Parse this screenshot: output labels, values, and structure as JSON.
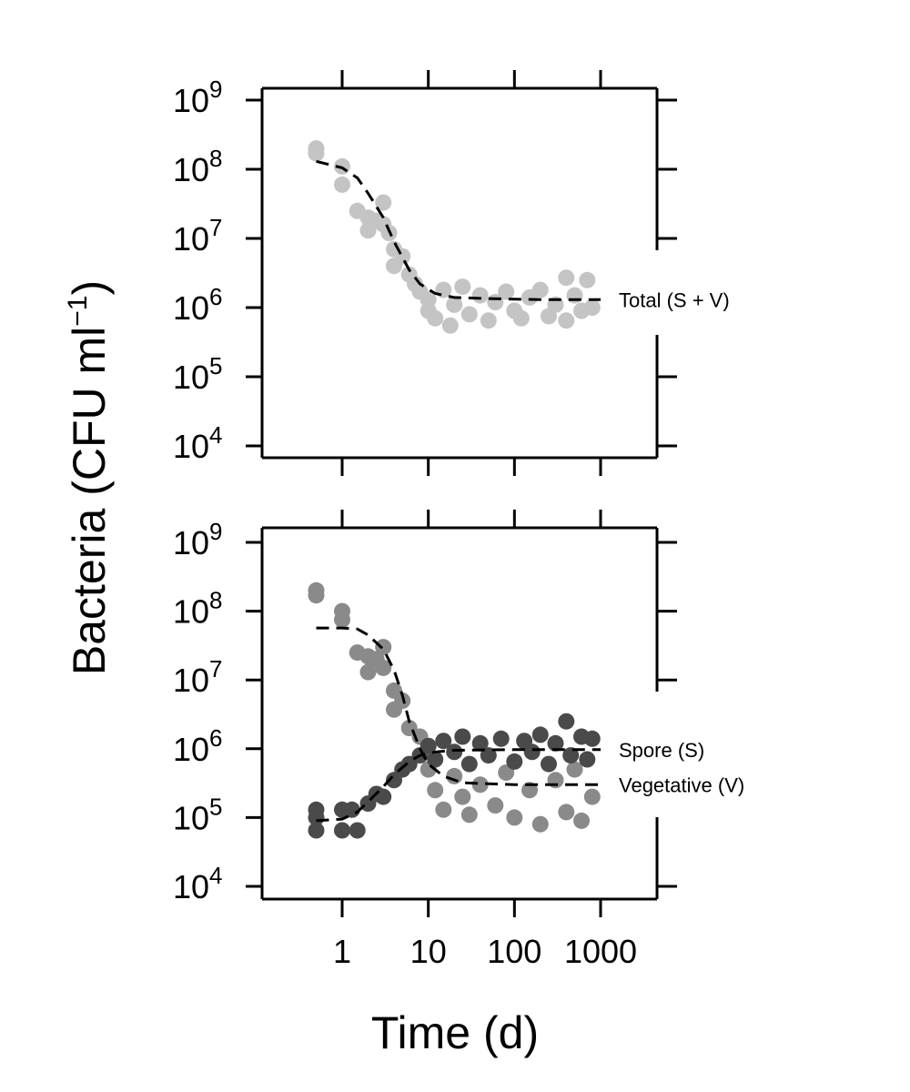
{
  "chart_data": [
    {
      "type": "scatter",
      "panel": "top",
      "x_scale": "log",
      "y_scale": "log",
      "xlim": [
        0.3,
        5000
      ],
      "ylim": [
        10000,
        1000000000
      ],
      "x_ticks": [
        1,
        10,
        100,
        1000
      ],
      "y_ticks": [
        {
          "base": "10",
          "exp": "9",
          "value": 1000000000
        },
        {
          "base": "10",
          "exp": "8",
          "value": 100000000
        },
        {
          "base": "10",
          "exp": "7",
          "value": 10000000
        },
        {
          "base": "10",
          "exp": "6",
          "value": 1000000
        },
        {
          "base": "10",
          "exp": "5",
          "value": 100000
        },
        {
          "base": "10",
          "exp": "4",
          "value": 10000
        }
      ],
      "series": [
        {
          "name": "Total (S + V)",
          "color": "#c4c4c4",
          "curve_color": "#000000",
          "points": [
            {
              "x": 0.5,
              "y": 200000000
            },
            {
              "x": 0.5,
              "y": 170000000
            },
            {
              "x": 1.0,
              "y": 110000000
            },
            {
              "x": 1.0,
              "y": 60000000
            },
            {
              "x": 1.5,
              "y": 25000000
            },
            {
              "x": 2.0,
              "y": 20000000
            },
            {
              "x": 2.0,
              "y": 13000000
            },
            {
              "x": 2.5,
              "y": 18000000
            },
            {
              "x": 3.0,
              "y": 33000000
            },
            {
              "x": 3.0,
              "y": 16000000
            },
            {
              "x": 3.5,
              "y": 12000000
            },
            {
              "x": 4.0,
              "y": 7000000
            },
            {
              "x": 4.0,
              "y": 4000000
            },
            {
              "x": 5.0,
              "y": 5500000
            },
            {
              "x": 6.0,
              "y": 3000000
            },
            {
              "x": 7.0,
              "y": 2200000
            },
            {
              "x": 8.0,
              "y": 1700000
            },
            {
              "x": 10,
              "y": 1300000
            },
            {
              "x": 10,
              "y": 900000
            },
            {
              "x": 12,
              "y": 700000
            },
            {
              "x": 15,
              "y": 1800000
            },
            {
              "x": 18,
              "y": 550000
            },
            {
              "x": 20,
              "y": 1100000
            },
            {
              "x": 25,
              "y": 2000000
            },
            {
              "x": 30,
              "y": 800000
            },
            {
              "x": 40,
              "y": 1500000
            },
            {
              "x": 50,
              "y": 650000
            },
            {
              "x": 60,
              "y": 1200000
            },
            {
              "x": 80,
              "y": 1700000
            },
            {
              "x": 100,
              "y": 900000
            },
            {
              "x": 120,
              "y": 700000
            },
            {
              "x": 150,
              "y": 1400000
            },
            {
              "x": 200,
              "y": 1800000
            },
            {
              "x": 250,
              "y": 750000
            },
            {
              "x": 300,
              "y": 1100000
            },
            {
              "x": 400,
              "y": 2700000
            },
            {
              "x": 400,
              "y": 650000
            },
            {
              "x": 500,
              "y": 1500000
            },
            {
              "x": 600,
              "y": 900000
            },
            {
              "x": 700,
              "y": 2500000
            },
            {
              "x": 800,
              "y": 1000000
            }
          ],
          "curve": [
            {
              "x": 0.5,
              "y": 130000000
            },
            {
              "x": 1,
              "y": 105000000
            },
            {
              "x": 1.5,
              "y": 75000000
            },
            {
              "x": 2,
              "y": 45000000
            },
            {
              "x": 3,
              "y": 20000000
            },
            {
              "x": 4,
              "y": 9000000
            },
            {
              "x": 6,
              "y": 3500000
            },
            {
              "x": 8,
              "y": 2200000
            },
            {
              "x": 12,
              "y": 1600000
            },
            {
              "x": 20,
              "y": 1400000
            },
            {
              "x": 50,
              "y": 1350000
            },
            {
              "x": 200,
              "y": 1300000
            },
            {
              "x": 1000,
              "y": 1300000
            }
          ],
          "label": "Total (S + V)"
        }
      ]
    },
    {
      "type": "scatter",
      "panel": "bottom",
      "x_scale": "log",
      "y_scale": "log",
      "xlim": [
        0.3,
        5000
      ],
      "ylim": [
        10000,
        1000000000
      ],
      "x_ticks": [
        1,
        10,
        100,
        1000
      ],
      "y_ticks": [
        {
          "base": "10",
          "exp": "9",
          "value": 1000000000
        },
        {
          "base": "10",
          "exp": "8",
          "value": 100000000
        },
        {
          "base": "10",
          "exp": "7",
          "value": 10000000
        },
        {
          "base": "10",
          "exp": "6",
          "value": 1000000
        },
        {
          "base": "10",
          "exp": "5",
          "value": 100000
        },
        {
          "base": "10",
          "exp": "4",
          "value": 10000
        }
      ],
      "series": [
        {
          "name": "Vegetative (V)",
          "color": "#8a8a8a",
          "points": [
            {
              "x": 0.5,
              "y": 200000000
            },
            {
              "x": 0.5,
              "y": 170000000
            },
            {
              "x": 1.0,
              "y": 100000000
            },
            {
              "x": 1.0,
              "y": 75000000
            },
            {
              "x": 1.5,
              "y": 25000000
            },
            {
              "x": 2.0,
              "y": 22000000
            },
            {
              "x": 2.0,
              "y": 13000000
            },
            {
              "x": 2.5,
              "y": 20000000
            },
            {
              "x": 3.0,
              "y": 30000000
            },
            {
              "x": 3.0,
              "y": 15000000
            },
            {
              "x": 4.0,
              "y": 7000000
            },
            {
              "x": 4.0,
              "y": 3700000
            },
            {
              "x": 5.0,
              "y": 5000000
            },
            {
              "x": 6.0,
              "y": 2000000
            },
            {
              "x": 8.0,
              "y": 1500000
            },
            {
              "x": 10,
              "y": 500000
            },
            {
              "x": 12,
              "y": 250000
            },
            {
              "x": 15,
              "y": 130000
            },
            {
              "x": 20,
              "y": 400000
            },
            {
              "x": 25,
              "y": 200000
            },
            {
              "x": 30,
              "y": 110000
            },
            {
              "x": 40,
              "y": 300000
            },
            {
              "x": 60,
              "y": 150000
            },
            {
              "x": 80,
              "y": 450000
            },
            {
              "x": 100,
              "y": 100000
            },
            {
              "x": 150,
              "y": 250000
            },
            {
              "x": 200,
              "y": 80000
            },
            {
              "x": 300,
              "y": 350000
            },
            {
              "x": 400,
              "y": 120000
            },
            {
              "x": 500,
              "y": 500000
            },
            {
              "x": 600,
              "y": 90000
            },
            {
              "x": 800,
              "y": 200000
            }
          ],
          "curve": [
            {
              "x": 0.5,
              "y": 57000000
            },
            {
              "x": 1,
              "y": 57000000
            },
            {
              "x": 1.5,
              "y": 55000000
            },
            {
              "x": 2,
              "y": 45000000
            },
            {
              "x": 3,
              "y": 28000000
            },
            {
              "x": 4,
              "y": 14000000
            },
            {
              "x": 5,
              "y": 6000000
            },
            {
              "x": 6,
              "y": 2500000
            },
            {
              "x": 8,
              "y": 1000000
            },
            {
              "x": 10,
              "y": 600000
            },
            {
              "x": 15,
              "y": 400000
            },
            {
              "x": 25,
              "y": 320000
            },
            {
              "x": 100,
              "y": 300000
            },
            {
              "x": 1000,
              "y": 300000
            }
          ],
          "label": "Vegetative (V)"
        },
        {
          "name": "Spore (S)",
          "color": "#4a4a4a",
          "points": [
            {
              "x": 0.5,
              "y": 130000
            },
            {
              "x": 0.5,
              "y": 100000
            },
            {
              "x": 0.5,
              "y": 65000
            },
            {
              "x": 1.0,
              "y": 130000
            },
            {
              "x": 1.0,
              "y": 65000
            },
            {
              "x": 1.3,
              "y": 130000
            },
            {
              "x": 1.5,
              "y": 65000
            },
            {
              "x": 2.0,
              "y": 160000
            },
            {
              "x": 2.5,
              "y": 220000
            },
            {
              "x": 3.0,
              "y": 200000
            },
            {
              "x": 4.0,
              "y": 350000
            },
            {
              "x": 5.0,
              "y": 500000
            },
            {
              "x": 6.0,
              "y": 600000
            },
            {
              "x": 8.0,
              "y": 800000
            },
            {
              "x": 10,
              "y": 1100000
            },
            {
              "x": 12,
              "y": 700000
            },
            {
              "x": 15,
              "y": 1300000
            },
            {
              "x": 20,
              "y": 900000
            },
            {
              "x": 25,
              "y": 1500000
            },
            {
              "x": 30,
              "y": 600000
            },
            {
              "x": 40,
              "y": 1200000
            },
            {
              "x": 50,
              "y": 800000
            },
            {
              "x": 70,
              "y": 1400000
            },
            {
              "x": 100,
              "y": 650000
            },
            {
              "x": 130,
              "y": 1300000
            },
            {
              "x": 160,
              "y": 900000
            },
            {
              "x": 200,
              "y": 1600000
            },
            {
              "x": 250,
              "y": 600000
            },
            {
              "x": 300,
              "y": 1200000
            },
            {
              "x": 400,
              "y": 2500000
            },
            {
              "x": 450,
              "y": 800000
            },
            {
              "x": 600,
              "y": 1500000
            },
            {
              "x": 700,
              "y": 700000
            },
            {
              "x": 800,
              "y": 1400000
            }
          ],
          "curve": [
            {
              "x": 0.5,
              "y": 90000
            },
            {
              "x": 1,
              "y": 95000
            },
            {
              "x": 1.5,
              "y": 120000
            },
            {
              "x": 2,
              "y": 170000
            },
            {
              "x": 3,
              "y": 280000
            },
            {
              "x": 4,
              "y": 420000
            },
            {
              "x": 6,
              "y": 650000
            },
            {
              "x": 8,
              "y": 800000
            },
            {
              "x": 12,
              "y": 900000
            },
            {
              "x": 20,
              "y": 950000
            },
            {
              "x": 100,
              "y": 970000
            },
            {
              "x": 1000,
              "y": 970000
            }
          ],
          "label": "Spore (S)"
        }
      ]
    }
  ],
  "axes": {
    "ylabel_main": "Bacteria (CFU ml",
    "ylabel_sup": "−1",
    "ylabel_close": ")",
    "xlabel": "Time (d)"
  }
}
